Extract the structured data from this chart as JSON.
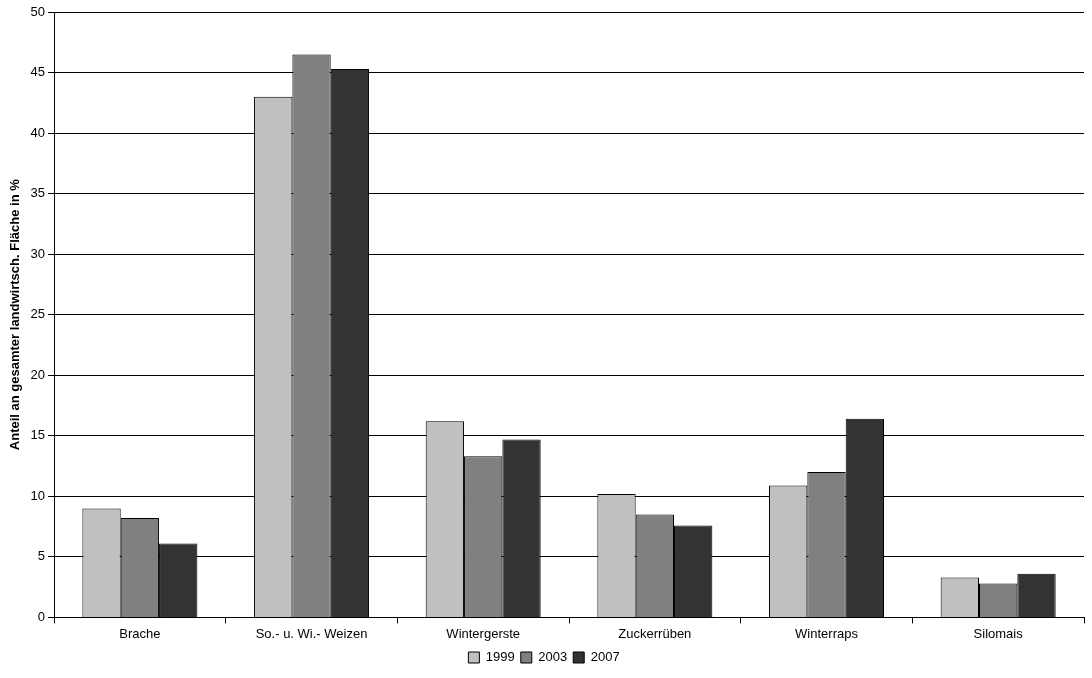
{
  "chart_data": {
    "type": "bar",
    "ylabel": "Anteil an gesamter landwirtsch. Fläche in %",
    "categories": [
      "Brache",
      "So.- u. Wi.- Weizen",
      "Wintergerste",
      "Zuckerrüben",
      "Winterraps",
      "Silomais"
    ],
    "series": [
      {
        "name": "1999",
        "color": "#c0c0c0",
        "values": [
          9.0,
          43.0,
          16.2,
          10.2,
          10.9,
          3.3
        ]
      },
      {
        "name": "2003",
        "color": "#808080",
        "values": [
          8.2,
          46.5,
          13.3,
          8.5,
          12.0,
          2.8
        ]
      },
      {
        "name": "2007",
        "color": "#333333",
        "values": [
          6.1,
          45.3,
          14.7,
          7.6,
          16.4,
          3.6
        ]
      }
    ],
    "ylim": [
      0,
      50
    ],
    "yticks": [
      0,
      5,
      10,
      15,
      20,
      25,
      30,
      35,
      40,
      45,
      50
    ],
    "grid": "y",
    "legend": "bottom"
  }
}
